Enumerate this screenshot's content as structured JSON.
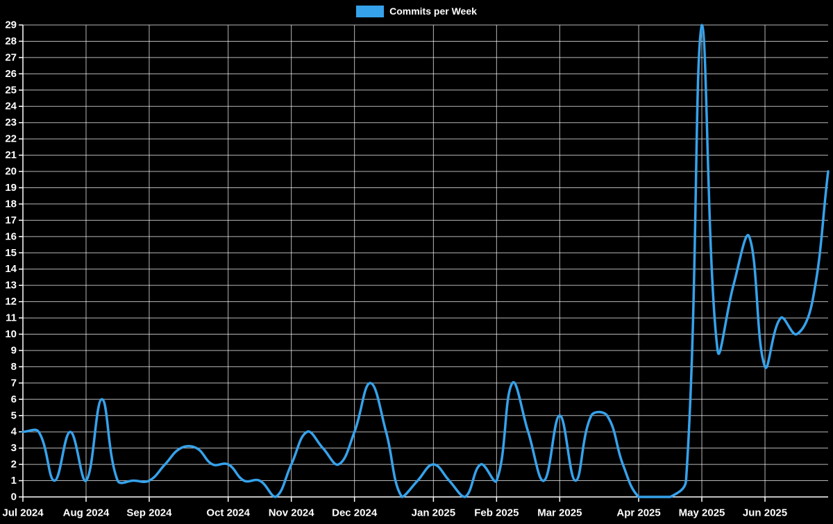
{
  "legend": {
    "label": "Commits per Week",
    "swatch_color": "#36a2eb"
  },
  "chart_data": {
    "type": "line",
    "title": "Commits per Week",
    "x_unit": "week-index",
    "n_points": 52,
    "x": [
      0,
      1,
      2,
      3,
      4,
      5,
      6,
      7,
      8,
      9,
      10,
      11,
      12,
      13,
      14,
      15,
      16,
      17,
      18,
      19,
      20,
      21,
      22,
      23,
      24,
      25,
      26,
      27,
      28,
      29,
      30,
      31,
      32,
      33,
      34,
      35,
      36,
      37,
      38,
      39,
      40,
      41,
      42,
      43,
      44,
      45,
      46,
      47,
      48,
      49,
      50,
      51
    ],
    "values": [
      4,
      4,
      1,
      4,
      1,
      6,
      1,
      1,
      1,
      2,
      3,
      3,
      2,
      2,
      1,
      1,
      0,
      2,
      4,
      3,
      2,
      4,
      7,
      4,
      0,
      1,
      2,
      1,
      0,
      2,
      1,
      7,
      4,
      1,
      5,
      1,
      5,
      5,
      2,
      0,
      0,
      0,
      1,
      29,
      9,
      13,
      16,
      8,
      11,
      10,
      12,
      20
    ],
    "series_name": "Commits per Week",
    "x_ticks": [
      {
        "week": 0,
        "label": "Jul 2024"
      },
      {
        "week": 4,
        "label": "Aug 2024"
      },
      {
        "week": 8,
        "label": "Sep 2024"
      },
      {
        "week": 13,
        "label": "Oct 2024"
      },
      {
        "week": 17,
        "label": "Nov 2024"
      },
      {
        "week": 21,
        "label": "Dec 2024"
      },
      {
        "week": 26,
        "label": "Jan 2025"
      },
      {
        "week": 30,
        "label": "Feb 2025"
      },
      {
        "week": 34,
        "label": "Mar 2025"
      },
      {
        "week": 39,
        "label": "Apr 2025"
      },
      {
        "week": 43,
        "label": "May 2025"
      },
      {
        "week": 47,
        "label": "Jun 2025"
      }
    ],
    "y_ticks": [
      0,
      1,
      2,
      3,
      4,
      5,
      6,
      7,
      8,
      9,
      10,
      11,
      12,
      13,
      14,
      15,
      16,
      17,
      18,
      19,
      20,
      21,
      22,
      23,
      24,
      25,
      26,
      27,
      28,
      29
    ],
    "ylim": [
      0,
      29
    ],
    "grid": true,
    "legend_position": "top",
    "smoothing": "bezier-0.4",
    "line_color": "#36a2eb",
    "background_color": "#000000",
    "grid_color": "rgba(255,255,255,0.72)",
    "axis_color": "#ffffff",
    "text_color": "#ffffff"
  }
}
